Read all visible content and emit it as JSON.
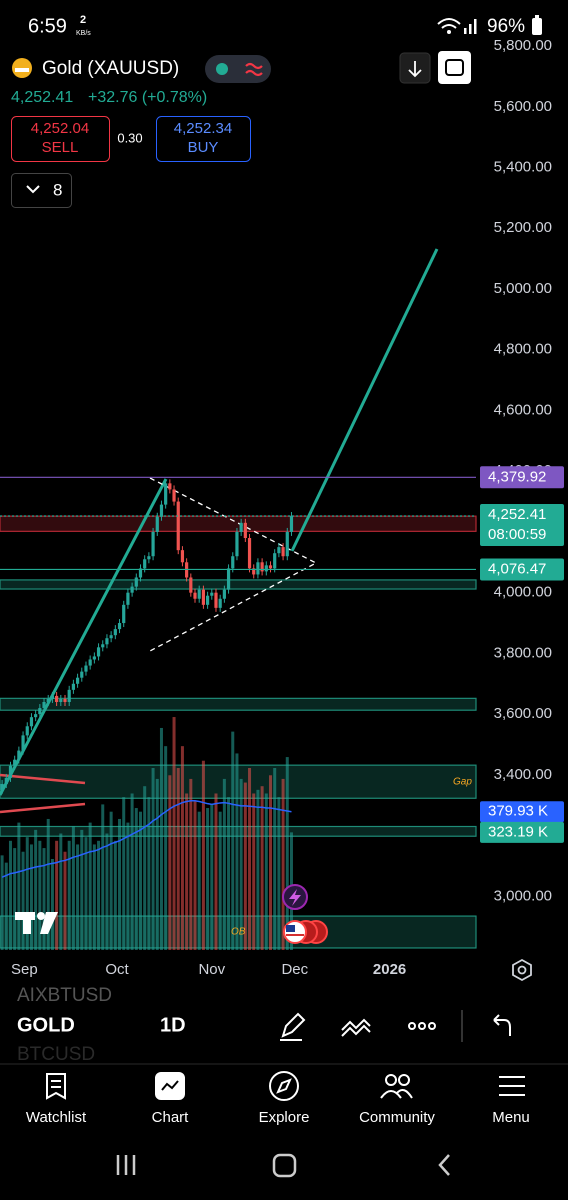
{
  "status_bar": {
    "time": "6:59",
    "net_speed": "2",
    "net_unit": "KB/s",
    "battery": "96%"
  },
  "header": {
    "symbol": "Gold (XAUUSD)",
    "price": "4,252.41",
    "change": "+32.76 (+0.78%)",
    "sell_price": "4,252.04",
    "sell": "SELL",
    "spread": "0.30",
    "buy_price": "4,252.34",
    "buy": "BUY",
    "indicator_count": "8"
  },
  "chart_data": {
    "type": "candlestick",
    "up_color": "#26a69a",
    "down_color": "#ef5350",
    "open_first": 3350,
    "closes": [
      3370,
      3390,
      3430,
      3450,
      3480,
      3530,
      3560,
      3590,
      3600,
      3620,
      3640,
      3650,
      3660,
      3640,
      3650,
      3640,
      3680,
      3700,
      3720,
      3740,
      3760,
      3780,
      3790,
      3820,
      3830,
      3850,
      3860,
      3880,
      3900,
      3960,
      4000,
      4020,
      4050,
      4080,
      4110,
      4120,
      4200,
      4250,
      4290,
      4360,
      4340,
      4300,
      4140,
      4100,
      4050,
      4000,
      3980,
      4010,
      3960,
      3990,
      4000,
      3950,
      3980,
      4010,
      4080,
      4120,
      4200,
      4230,
      4180,
      4080,
      4060,
      4100,
      4070,
      4090,
      4080,
      4130,
      4150,
      4120,
      4200,
      4252.41
    ],
    "volume": [
      260,
      240,
      300,
      280,
      350,
      270,
      310,
      290,
      330,
      300,
      280,
      360,
      250,
      300,
      320,
      270,
      300,
      340,
      290,
      330,
      310,
      350,
      290,
      300,
      400,
      320,
      380,
      300,
      360,
      420,
      350,
      430,
      390,
      380,
      450,
      420,
      500,
      470,
      610,
      560,
      480,
      640,
      500,
      560,
      430,
      470,
      410,
      380,
      520,
      390,
      400,
      430,
      380,
      470,
      420,
      600,
      540,
      470,
      460,
      500,
      430,
      440,
      450,
      430,
      480,
      500,
      420,
      470,
      530,
      323.19
    ],
    "volume_ma": [
      200,
      205,
      210,
      212,
      215,
      218,
      222,
      225,
      228,
      230,
      232,
      236,
      238,
      240,
      244,
      246,
      250,
      255,
      258,
      262,
      266,
      270,
      272,
      276,
      282,
      286,
      292,
      296,
      300,
      306,
      312,
      318,
      324,
      330,
      338,
      345,
      355,
      362,
      372,
      380,
      388,
      395,
      400,
      405,
      408,
      410,
      410,
      408,
      405,
      402,
      400,
      402,
      404,
      405,
      403,
      400,
      398,
      396,
      396,
      395,
      394,
      392,
      392,
      390,
      390,
      388,
      386,
      384,
      382,
      379.93
    ],
    "ma_color": "#2962ff",
    "xlim": [
      -0.5,
      113
    ],
    "xticks": [
      {
        "value": 5.3,
        "label": "Sep"
      },
      {
        "value": 27.4,
        "label": "Oct"
      },
      {
        "value": 50,
        "label": "Nov"
      },
      {
        "value": 69.8,
        "label": "Dec"
      },
      {
        "value": 92.4,
        "label": "2026"
      }
    ],
    "ylim": [
      2820,
      5820
    ],
    "yticks": [
      {
        "value": 3000,
        "label": "3,000.00"
      },
      {
        "value": 3200,
        "label": "3,200.00"
      },
      {
        "value": 3400,
        "label": "3,400.00"
      },
      {
        "value": 3600,
        "label": "3,600.00"
      },
      {
        "value": 3800,
        "label": "3,800.00"
      },
      {
        "value": 4000,
        "label": "4,000.00"
      },
      {
        "value": 4200,
        "label": "4,200.00"
      },
      {
        "value": 4400,
        "label": "4,400.00"
      },
      {
        "value": 4600,
        "label": "4,600.00"
      },
      {
        "value": 4800,
        "label": "4,800.00"
      },
      {
        "value": 5000,
        "label": "5,000.00"
      },
      {
        "value": 5200,
        "label": "5,200.00"
      },
      {
        "value": 5400,
        "label": "5,400.00"
      },
      {
        "value": 5600,
        "label": "5,600.00"
      },
      {
        "value": 5800,
        "label": "5,800.00"
      }
    ],
    "vlim": [
      0,
      1000
    ],
    "zones": [
      {
        "lo": 4202,
        "hi": 4252,
        "color": "#b22833"
      },
      {
        "lo": 4012,
        "hi": 4042,
        "color": "#1e8c78"
      },
      {
        "lo": 3613,
        "hi": 3652,
        "color": "#1e8c78"
      },
      {
        "lo": 3323,
        "hi": 3432,
        "color": "#1e8c78"
      },
      {
        "lo": 3198,
        "hi": 3230,
        "color": "#1e8c78"
      },
      {
        "lo": 2830,
        "hi": 2935,
        "color": "#1e8c78"
      }
    ],
    "price_lines": [
      {
        "value": 4379.92,
        "label": "4,379.92",
        "color": "#7e57c2"
      },
      {
        "value": 4252.41,
        "label": "4,252.41",
        "countdown": "08:00:59",
        "color": "#22ab94"
      },
      {
        "value": 4076.47,
        "label": "4,076.47",
        "color": "#22ab94"
      }
    ],
    "volume_labels": [
      {
        "value": 379.93,
        "label": "379.93 K",
        "color": "#2962ff"
      },
      {
        "value": 323.19,
        "label": "323.19 K",
        "color": "#22ab94"
      }
    ],
    "annotations": [
      "Gap",
      "OB"
    ]
  },
  "toolbar": {
    "prev_symbol": "AIXBTUSD",
    "symbol": "GOLD",
    "interval": "1D",
    "next_symbol": "BTCUSD"
  },
  "nav": [
    {
      "label": "Watchlist"
    },
    {
      "label": "Chart"
    },
    {
      "label": "Explore"
    },
    {
      "label": "Community"
    },
    {
      "label": "Menu"
    }
  ]
}
